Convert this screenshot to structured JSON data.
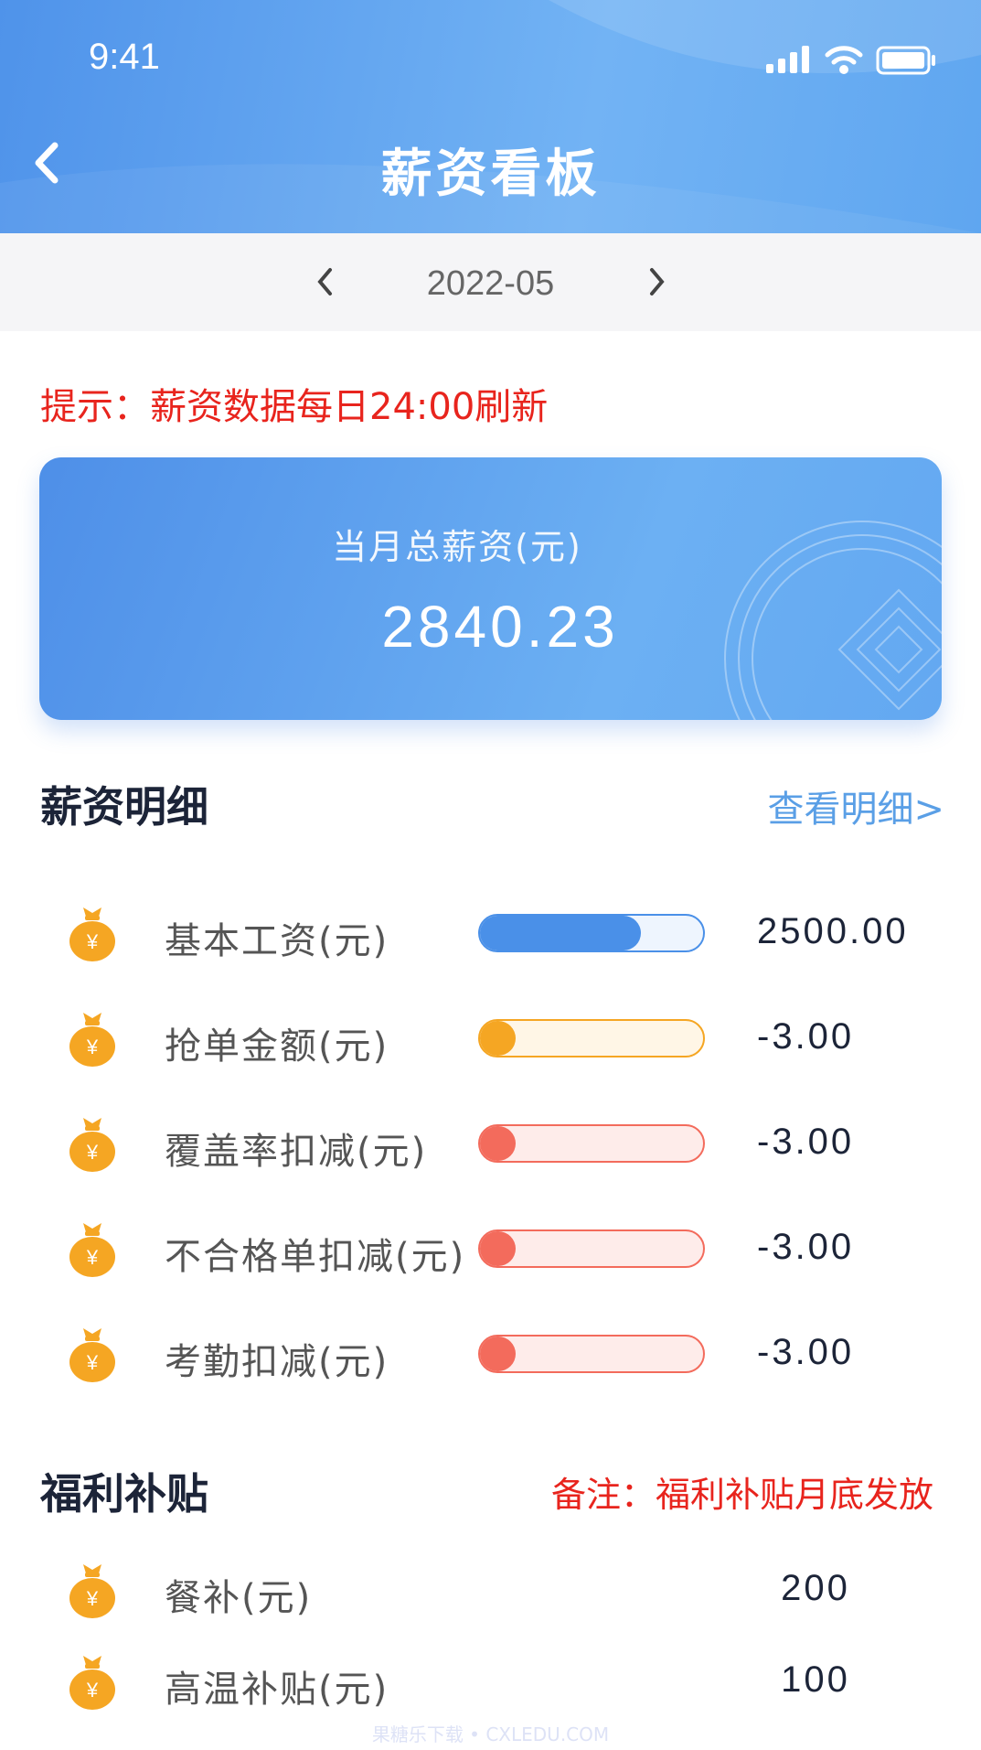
{
  "status_bar": {
    "time": "9:41"
  },
  "header": {
    "title": "薪资看板"
  },
  "date_selector": {
    "month": "2022-05"
  },
  "tip": "提示：薪资数据每日24:00刷新",
  "summary": {
    "label": "当月总薪资(元)",
    "value": "2840.23"
  },
  "salary_detail": {
    "title": "薪资明细",
    "link": "查看明细>",
    "items": [
      {
        "label": "基本工资(元)",
        "value": "2500.00"
      },
      {
        "label": "抢单金额(元)",
        "value": "-3.00"
      },
      {
        "label": "覆盖率扣减(元)",
        "value": "-3.00"
      },
      {
        "label": "不合格单扣减(元)",
        "value": "-3.00"
      },
      {
        "label": "考勤扣减(元)",
        "value": "-3.00"
      }
    ]
  },
  "allowance": {
    "title": "福利补贴",
    "note": "备注：福利补贴月底发放",
    "items": [
      {
        "label": "餐补(元)",
        "value": "200"
      },
      {
        "label": "高温补贴(元)",
        "value": "100"
      }
    ]
  },
  "watermark": "果糖乐下载 • CXLEDU.COM"
}
